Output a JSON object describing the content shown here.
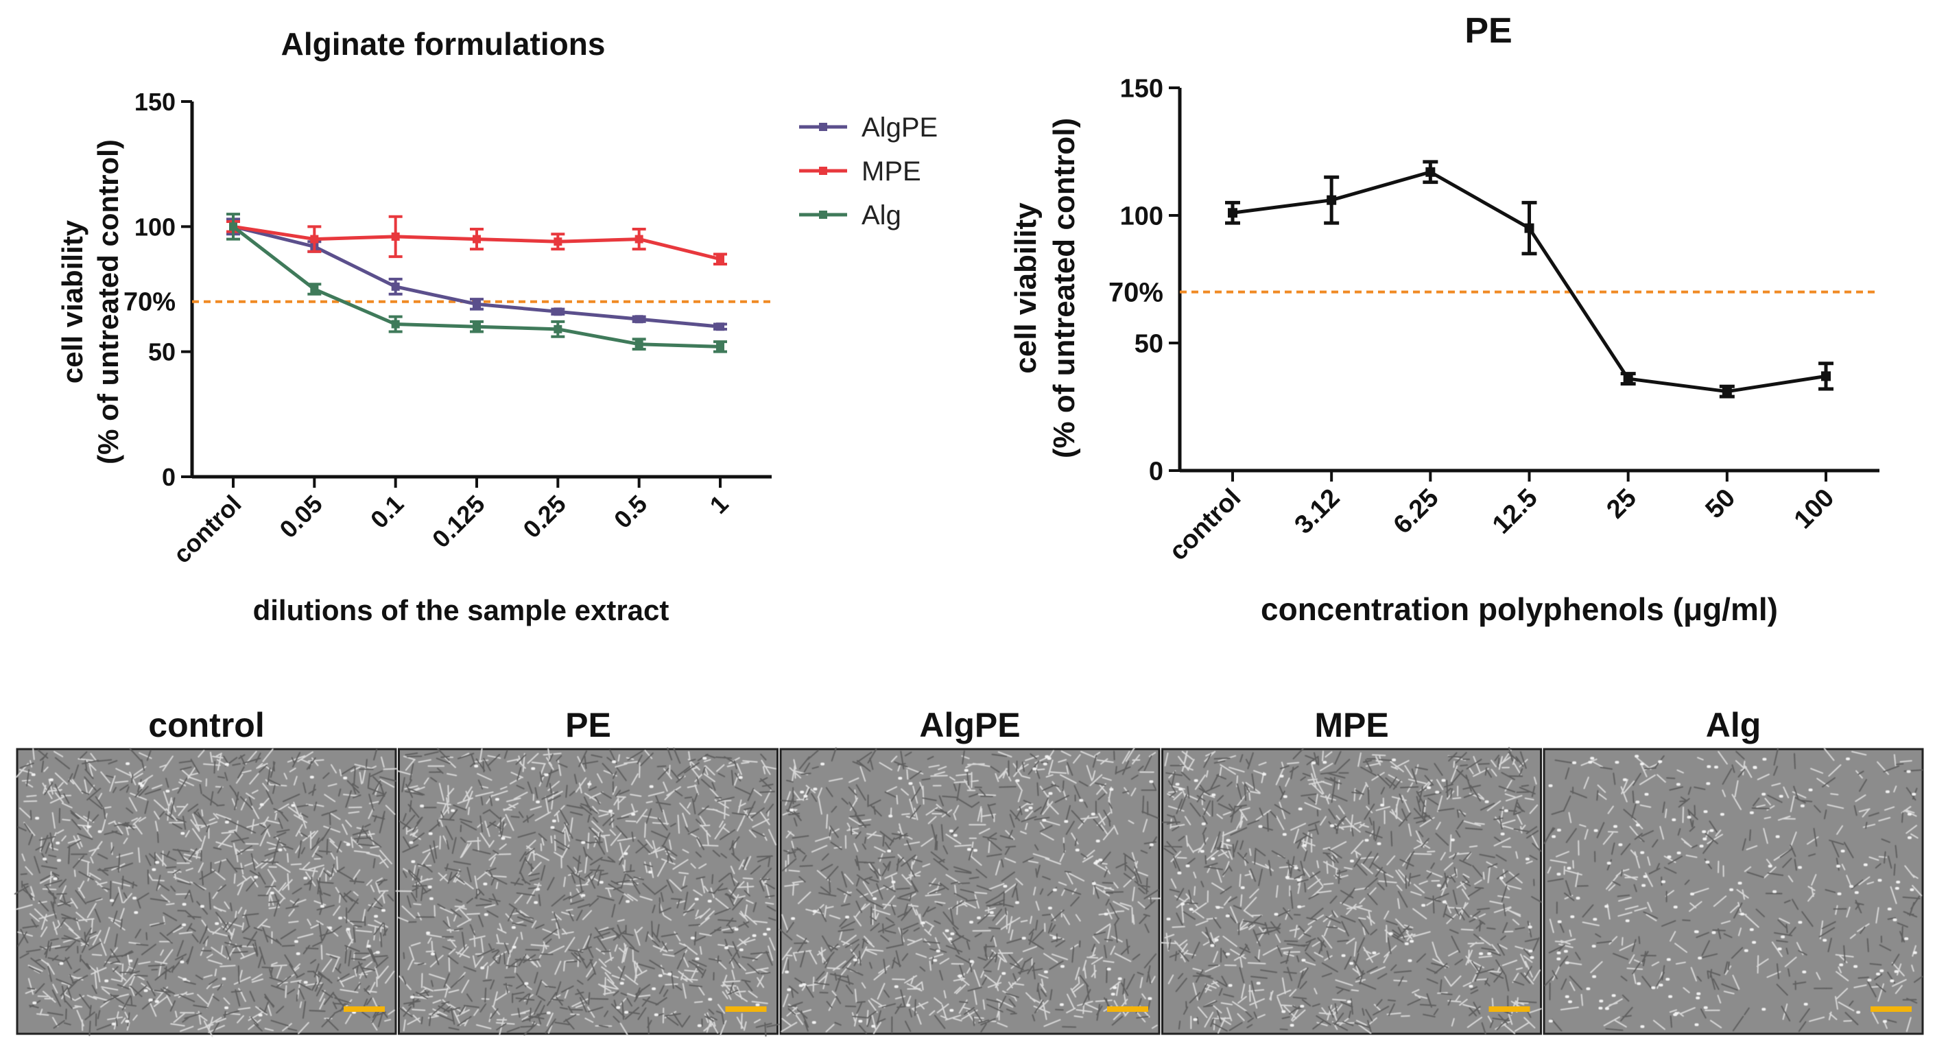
{
  "chart_data": [
    {
      "type": "line",
      "title": "Alginate formulations",
      "xlabel": "dilutions of the sample extract",
      "ylabel_line1": "cell viability",
      "ylabel_line2": "(% of untreated control)",
      "categories": [
        "control",
        "0.05",
        "0.1",
        "0.125",
        "0.25",
        "0.5",
        "1"
      ],
      "yticks": [
        0,
        50,
        100,
        150
      ],
      "ylim": [
        0,
        150
      ],
      "grid": false,
      "legend_position": "top-right",
      "threshold": {
        "value": 70,
        "label": "70%",
        "color": "#f08a24"
      },
      "series": [
        {
          "name": "AlgPE",
          "color": "#5b4f8c",
          "values": [
            100,
            92,
            76,
            69,
            66,
            63,
            60
          ],
          "errors": [
            3,
            2,
            3,
            2,
            1,
            1,
            1
          ]
        },
        {
          "name": "MPE",
          "color": "#e8383d",
          "values": [
            100,
            95,
            96,
            95,
            94,
            95,
            87
          ],
          "errors": [
            2,
            5,
            8,
            4,
            3,
            4,
            2
          ]
        },
        {
          "name": "Alg",
          "color": "#3f7a5a",
          "values": [
            100,
            75,
            61,
            60,
            59,
            53,
            52
          ],
          "errors": [
            5,
            2,
            3,
            2,
            3,
            2,
            2
          ]
        }
      ]
    },
    {
      "type": "line",
      "title": "PE",
      "xlabel": "concentration polyphenols (μg/ml)",
      "ylabel_line1": "cell viability",
      "ylabel_line2": "(% of untreated control)",
      "categories": [
        "control",
        "3.12",
        "6.25",
        "12.5",
        "25",
        "50",
        "100"
      ],
      "yticks": [
        0,
        50,
        100,
        150
      ],
      "ylim": [
        0,
        150
      ],
      "grid": false,
      "threshold": {
        "value": 70,
        "label": "70%",
        "color": "#f08a24"
      },
      "series": [
        {
          "name": "PE",
          "color": "#111111",
          "values": [
            101,
            106,
            117,
            95,
            36,
            31,
            37
          ],
          "errors": [
            4,
            9,
            4,
            10,
            2,
            2,
            5
          ]
        }
      ]
    }
  ],
  "image_panels": [
    {
      "label": "control",
      "density": 1.0
    },
    {
      "label": "PE",
      "density": 1.0
    },
    {
      "label": "AlgPE",
      "density": 0.85
    },
    {
      "label": "MPE",
      "density": 0.9
    },
    {
      "label": "Alg",
      "density": 0.4
    }
  ],
  "colors": {
    "photo_background": "#8c8c8c",
    "scale_bar": "#f5b40a"
  }
}
